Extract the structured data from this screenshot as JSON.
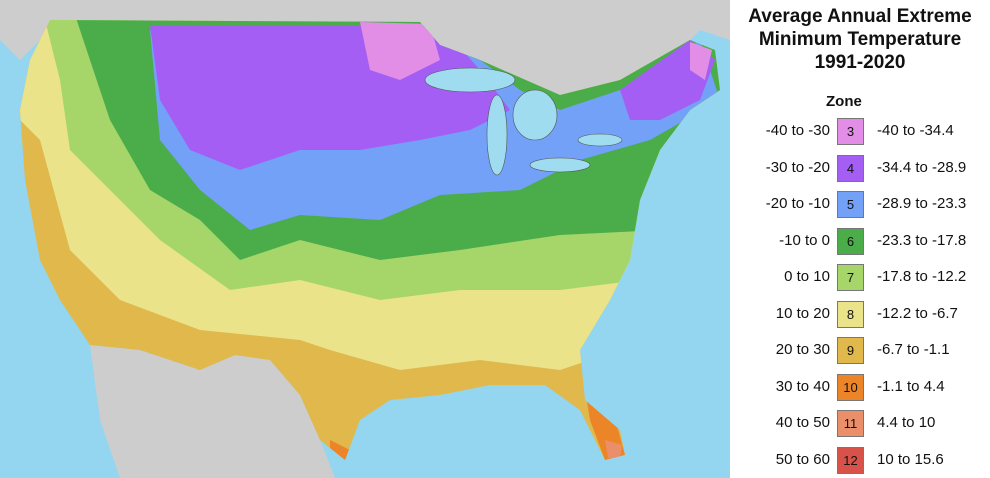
{
  "title_lines": [
    "Average Annual Extreme",
    "Minimum Temperature",
    "1991-2020"
  ],
  "legend_header": "Zone",
  "colors": {
    "ocean": "#94d6ef",
    "foreign_land": "#cdcdcd",
    "lakes": "#9fdcf0"
  },
  "zones": [
    {
      "zone": "3",
      "fahrenheit": "-40 to -30",
      "celsius": "-40 to -34.4",
      "color": "#e28de6"
    },
    {
      "zone": "4",
      "fahrenheit": "-30 to -20",
      "celsius": "-34.4 to -28.9",
      "color": "#a45ef4"
    },
    {
      "zone": "5",
      "fahrenheit": "-20 to -10",
      "celsius": "-28.9 to -23.3",
      "color": "#72a1f7"
    },
    {
      "zone": "6",
      "fahrenheit": "-10 to 0",
      "celsius": "-23.3 to -17.8",
      "color": "#4aad4a"
    },
    {
      "zone": "7",
      "fahrenheit": "0 to 10",
      "celsius": "-17.8 to -12.2",
      "color": "#a6d66a"
    },
    {
      "zone": "8",
      "fahrenheit": "10 to 20",
      "celsius": "-12.2 to -6.7",
      "color": "#ebe38a"
    },
    {
      "zone": "9",
      "fahrenheit": "20 to 30",
      "celsius": "-6.7 to -1.1",
      "color": "#e0b84c"
    },
    {
      "zone": "10",
      "fahrenheit": "30 to 40",
      "celsius": "-1.1 to 4.4",
      "color": "#ec8527"
    },
    {
      "zone": "11",
      "fahrenheit": "40 to 50",
      "celsius": "4.4 to 10",
      "color": "#eb8f6a"
    },
    {
      "zone": "12",
      "fahrenheit": "50 to 60",
      "celsius": "10 to 15.6",
      "color": "#d9524a"
    }
  ]
}
